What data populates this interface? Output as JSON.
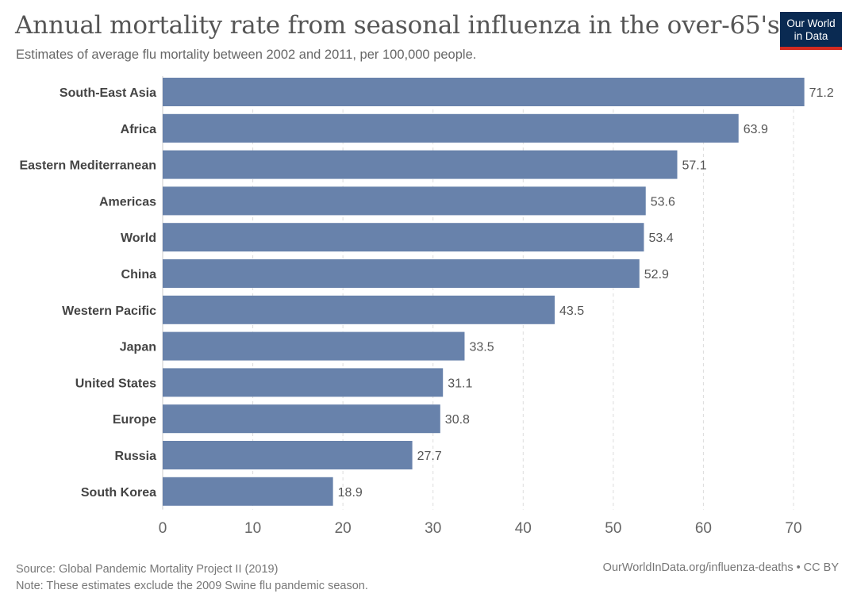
{
  "header": {
    "title": "Annual mortality rate from seasonal influenza in the over-65's",
    "subtitle": "Estimates of average flu mortality between 2002 and 2011, per 100,000 people."
  },
  "logo": {
    "line1": "Our World",
    "line2": "in Data"
  },
  "footer": {
    "source": "Source: Global Pandemic Mortality Project II (2019)",
    "note": "Note: These estimates exclude the 2009 Swine flu pandemic season.",
    "url": "OurWorldInData.org/influenza-deaths",
    "separator": "•",
    "license": "CC BY"
  },
  "colors": {
    "bar": "#6882ab",
    "grid": "#dddddd",
    "axis_text": "#666666",
    "label_text": "#444444",
    "value_text": "#555555"
  },
  "chart_data": {
    "type": "bar",
    "orientation": "horizontal",
    "title": "Annual mortality rate from seasonal influenza in the over-65's",
    "xlabel": "",
    "ylabel": "",
    "xlim": [
      0,
      70
    ],
    "xticks": [
      0,
      10,
      20,
      30,
      40,
      50,
      60,
      70
    ],
    "grid": true,
    "categories": [
      "South-East Asia",
      "Africa",
      "Eastern Mediterranean",
      "Americas",
      "World",
      "China",
      "Western Pacific",
      "Japan",
      "United States",
      "Europe",
      "Russia",
      "South Korea"
    ],
    "values": [
      71.2,
      63.9,
      57.1,
      53.6,
      53.4,
      52.9,
      43.5,
      33.5,
      31.1,
      30.8,
      27.7,
      18.9
    ]
  }
}
